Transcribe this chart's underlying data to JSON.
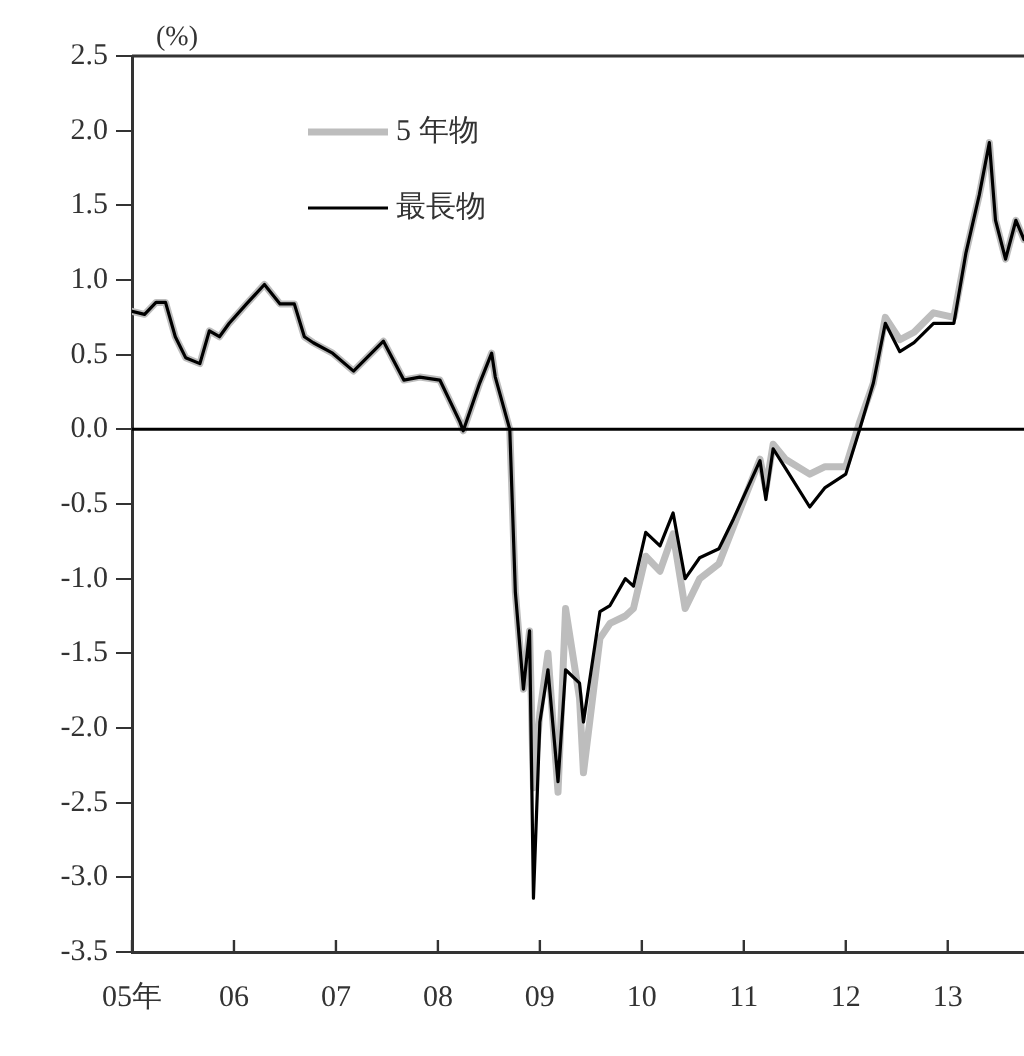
{
  "chart_data": {
    "type": "line",
    "ylabel": "(%)",
    "xlim": [
      "2005-01-01",
      "2013-10-01"
    ],
    "xticks": [
      {
        "value": "2005-01-01",
        "label": "05年"
      },
      {
        "value": "2006-01-01",
        "label": "06"
      },
      {
        "value": "2007-01-01",
        "label": "07"
      },
      {
        "value": "2008-01-01",
        "label": "08"
      },
      {
        "value": "2009-01-01",
        "label": "09"
      },
      {
        "value": "2010-01-01",
        "label": "10"
      },
      {
        "value": "2011-01-01",
        "label": "11"
      },
      {
        "value": "2012-01-01",
        "label": "12"
      },
      {
        "value": "2013-01-01",
        "label": "13"
      }
    ],
    "ylim": [
      -3.5,
      2.5
    ],
    "yticks": [
      {
        "value": 2.5,
        "label": "2.5"
      },
      {
        "value": 2,
        "label": "2.0"
      },
      {
        "value": 1.5,
        "label": "1.5"
      },
      {
        "value": 1,
        "label": "1.0"
      },
      {
        "value": 0.5,
        "label": "0.5"
      },
      {
        "value": 0,
        "label": "0.0"
      },
      {
        "value": -0.5,
        "label": "-0.5"
      },
      {
        "value": -1,
        "label": "-1.0"
      },
      {
        "value": -1.5,
        "label": "-1.5"
      },
      {
        "value": -2,
        "label": "-2.0"
      },
      {
        "value": -2.5,
        "label": "-2.5"
      },
      {
        "value": -3,
        "label": "-3.0"
      },
      {
        "value": -3.5,
        "label": "-3.5"
      }
    ],
    "x": [
      "2005-01-01",
      "2005-02-15",
      "2005-03-28",
      "2005-05-01",
      "2005-06-05",
      "2005-07-12",
      "2005-09-01",
      "2005-10-05",
      "2005-11-10",
      "2005-12-15",
      "2006-02-15",
      "2006-04-20",
      "2006-06-15",
      "2006-08-05",
      "2006-09-10",
      "2006-10-12",
      "2006-12-20",
      "2007-03-05",
      "2007-06-20",
      "2007-09-01",
      "2007-10-28",
      "2008-01-08",
      "2008-03-20",
      "2008-04-01",
      "2008-05-30",
      "2008-07-12",
      "2008-07-25",
      "2008-09-15",
      "2008-10-05",
      "2008-11-03",
      "2008-11-25",
      "2008-12-09",
      "2009-01-01",
      "2009-01-30",
      "2009-03-07",
      "2009-04-03",
      "2009-05-23",
      "2009-06-06",
      "2009-08-04",
      "2009-09-09",
      "2009-11-03",
      "2009-12-02",
      "2010-01-15",
      "2010-03-07",
      "2010-04-23",
      "2010-06-05",
      "2010-07-27",
      "2010-10-04",
      "2010-11-25",
      "2011-02-28",
      "2011-03-21",
      "2011-04-16",
      "2011-05-30",
      "2011-08-25",
      "2011-10-19",
      "2012-01-01",
      "2012-02-20",
      "2012-04-09",
      "2012-05-22",
      "2012-07-13",
      "2012-09-02",
      "2012-11-11",
      "2013-01-23",
      "2013-03-07",
      "2013-04-24",
      "2013-05-30",
      "2013-06-21",
      "2013-07-27",
      "2013-09-02",
      "2013-10-01"
    ],
    "series": [
      {
        "name": "5 年物",
        "color": "#bdbdbd",
        "values": [
          0.79,
          0.77,
          0.85,
          0.85,
          0.62,
          0.48,
          0.44,
          0.66,
          0.62,
          0.71,
          0.84,
          0.97,
          0.84,
          0.84,
          0.62,
          0.58,
          0.51,
          0.39,
          0.59,
          0.33,
          0.35,
          0.33,
          0.05,
          -0.01,
          0.31,
          0.51,
          0.35,
          0.0,
          -1.09,
          -1.74,
          -1.35,
          -2.4,
          -1.9,
          -1.5,
          -2.43,
          -1.2,
          -1.8,
          -2.3,
          -1.4,
          -1.3,
          -1.25,
          -1.2,
          -0.85,
          -0.95,
          -0.7,
          -1.2,
          -1.0,
          -0.9,
          -0.65,
          -0.2,
          -0.4,
          -0.1,
          -0.2,
          -0.3,
          -0.25,
          -0.25,
          0.05,
          0.31,
          0.75,
          0.6,
          0.65,
          0.78,
          0.75,
          1.18,
          1.57,
          1.92,
          1.4,
          1.14,
          1.4,
          1.27
        ]
      },
      {
        "name": "最長物",
        "color": "#000000",
        "values": [
          0.79,
          0.77,
          0.85,
          0.85,
          0.62,
          0.48,
          0.44,
          0.66,
          0.62,
          0.71,
          0.84,
          0.97,
          0.84,
          0.84,
          0.62,
          0.58,
          0.51,
          0.39,
          0.59,
          0.33,
          0.35,
          0.33,
          0.05,
          -0.01,
          0.31,
          0.51,
          0.35,
          0.0,
          -1.09,
          -1.74,
          -1.35,
          -3.14,
          -1.96,
          -1.61,
          -2.36,
          -1.61,
          -1.7,
          -1.96,
          -1.22,
          -1.18,
          -1.0,
          -1.05,
          -0.69,
          -0.78,
          -0.56,
          -1.0,
          -0.86,
          -0.8,
          -0.6,
          -0.21,
          -0.47,
          -0.13,
          -0.26,
          -0.52,
          -0.39,
          -0.3,
          0.0,
          0.31,
          0.71,
          0.52,
          0.58,
          0.71,
          0.71,
          1.18,
          1.57,
          1.92,
          1.4,
          1.14,
          1.4,
          1.27
        ]
      }
    ],
    "ref_lines": [
      {
        "axis": "y",
        "value": 0,
        "color": "#000000"
      }
    ],
    "grid": false,
    "legend": "top left",
    "marker": "none",
    "line_style": "solid"
  }
}
